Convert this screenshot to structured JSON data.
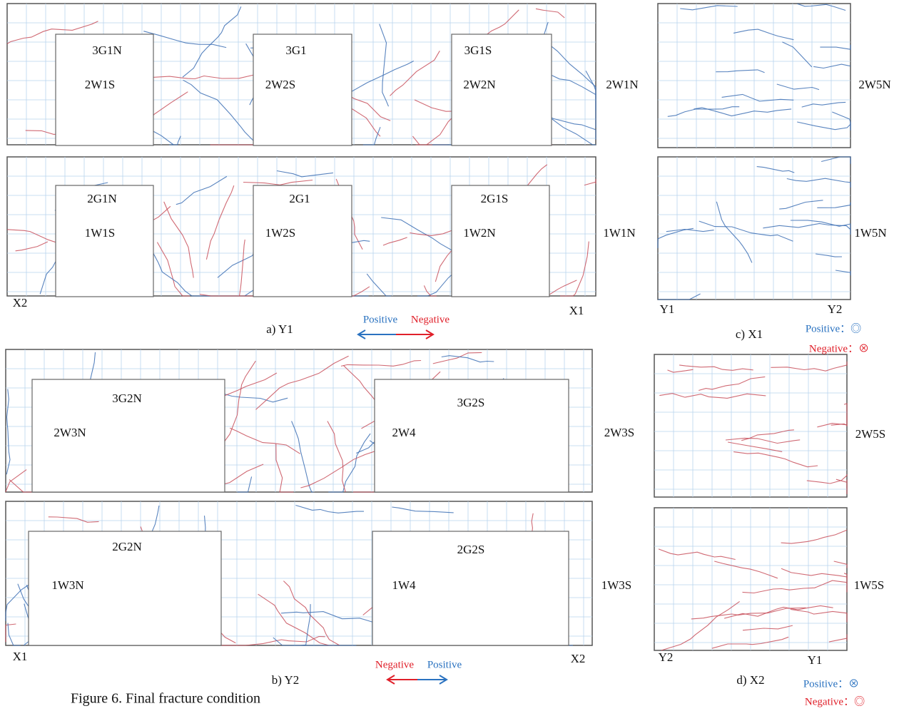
{
  "panel_a": {
    "caption": "a) Y1",
    "labels": [
      "3G1N",
      "3G1",
      "3G1S",
      "2W1S",
      "2W2S",
      "2W2N",
      "2W1N",
      "2G1N",
      "2G1",
      "2G1S",
      "1W1S",
      "1W2S",
      "1W2N",
      "1W1N",
      "X2",
      "X1"
    ],
    "legend": {
      "positive": "Positive",
      "negative": "Negative"
    }
  },
  "panel_b": {
    "caption": "b) Y2",
    "labels": [
      "3G2N",
      "3G2S",
      "2W3N",
      "2W4",
      "2W3S",
      "2G2N",
      "2G2S",
      "1W3N",
      "1W4",
      "1W3S",
      "X1",
      "X2"
    ],
    "legend": {
      "negative": "Negative",
      "positive": "Positive"
    }
  },
  "panel_c": {
    "caption": "c) X1",
    "labels": [
      "2W5N",
      "1W5N",
      "Y1",
      "Y2"
    ],
    "legend": {
      "positive": "Positive：◎",
      "negative": "Negative：⊗"
    }
  },
  "panel_d": {
    "caption": "d) X2",
    "labels": [
      "2W5S",
      "1W5S",
      "Y2",
      "Y1"
    ],
    "legend": {
      "positive": "Positive：⊗",
      "negative": "Negative：◎"
    }
  },
  "figure_caption": "Figure 6. Final fracture condition"
}
